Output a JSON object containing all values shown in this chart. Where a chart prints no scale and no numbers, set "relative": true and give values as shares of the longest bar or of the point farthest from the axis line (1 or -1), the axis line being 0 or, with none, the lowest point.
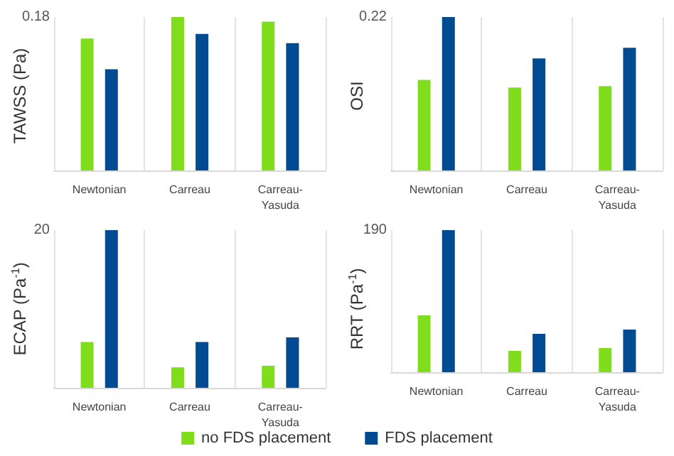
{
  "chart_data": [
    {
      "type": "bar",
      "relative": true,
      "ylabel": "TAWSS (Pa)",
      "annotations": [
        "0.18"
      ],
      "categories": [
        "Newtonian",
        "Carreau",
        "Carreau-Yasuda"
      ],
      "grid": "x",
      "series": [
        {
          "color": "#80dd1c",
          "values": [
            0.86,
            1,
            0.97
          ]
        },
        {
          "color": "#004b91",
          "values": [
            0.66,
            0.89,
            0.83
          ]
        }
      ]
    },
    {
      "type": "bar",
      "relative": true,
      "ylabel": "OSI",
      "annotations": [
        "0.22"
      ],
      "categories": [
        "Newtonian",
        "Carreau",
        "Carreau-Yasuda"
      ],
      "grid": "x",
      "series": [
        {
          "color": "#80dd1c",
          "values": [
            0.59,
            0.54,
            0.55
          ]
        },
        {
          "color": "#004b91",
          "values": [
            1,
            0.73,
            0.8
          ]
        }
      ]
    },
    {
      "type": "bar",
      "relative": true,
      "ylabel": "ECAP (Pa$^{-1}$)",
      "annotations": [
        "20"
      ],
      "categories": [
        "Newtonian",
        "Carreau",
        "Carreau-Yasuda"
      ],
      "grid": "x",
      "legend": "bottom",
      "series": [
        {
          "name": "no FDS placement",
          "color": "#80dd1c",
          "values": [
            0.29,
            0.13,
            0.14
          ]
        },
        {
          "name": "FDS placement",
          "color": "#004b91",
          "values": [
            1,
            0.29,
            0.32
          ]
        }
      ]
    },
    {
      "type": "bar",
      "relative": true,
      "ylabel": "RRT (Pa$^{-1}$)",
      "annotations": [
        "190"
      ],
      "categories": [
        "Newtonian",
        "Carreau",
        "Carreau-Yasuda"
      ],
      "grid": "x",
      "series": [
        {
          "color": "#80dd1c",
          "values": [
            0.4,
            0.15,
            0.17
          ]
        },
        {
          "color": "#004b91",
          "values": [
            1,
            0.27,
            0.3
          ]
        }
      ]
    }
  ]
}
